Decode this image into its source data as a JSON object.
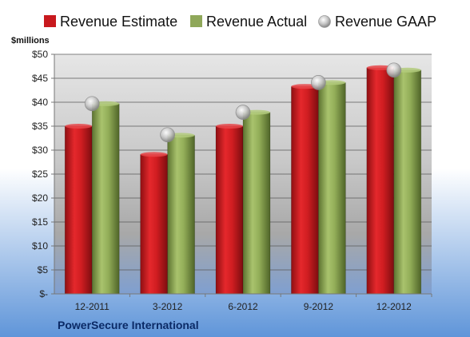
{
  "chart_data": {
    "type": "bar",
    "ylabel": "$millions",
    "ylim": [
      0,
      50
    ],
    "y_ticks": [
      "$-",
      "$5",
      "$10",
      "$15",
      "$20",
      "$25",
      "$30",
      "$35",
      "$40",
      "$45",
      "$50"
    ],
    "categories": [
      "12-2011",
      "3-2012",
      "6-2012",
      "9-2012",
      "12-2012"
    ],
    "series": [
      {
        "name": "Revenue Estimate",
        "type": "bar",
        "color": "#c8191e",
        "values": [
          35.0,
          29.1,
          35.0,
          43.3,
          47.2
        ]
      },
      {
        "name": "Revenue Actual",
        "type": "bar",
        "color": "#8fa85a",
        "values": [
          39.7,
          33.1,
          37.9,
          44.1,
          46.7
        ]
      },
      {
        "name": "Revenue GAAP",
        "type": "marker",
        "color": "#b8b8b8",
        "values": [
          39.7,
          33.2,
          37.9,
          44.1,
          46.7
        ]
      }
    ],
    "legend_position": "top",
    "grid": true,
    "footer": "PowerSecure International"
  }
}
